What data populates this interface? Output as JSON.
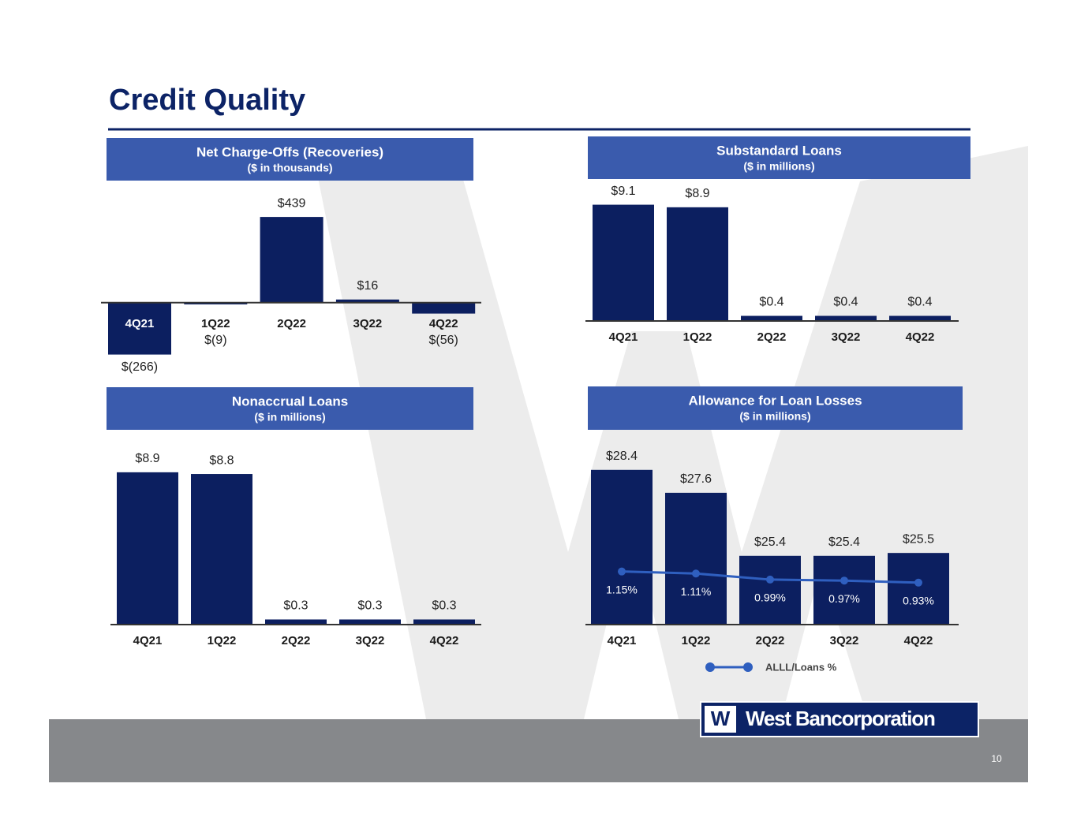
{
  "title": "Credit Quality",
  "page_number": "10",
  "logo_mark": "W",
  "logo": "West Bancorporation",
  "chart_data": [
    {
      "type": "bar",
      "title": "Net Charge-Offs (Recoveries)",
      "subtitle": "($ in thousands)",
      "categories": [
        "4Q21",
        "1Q22",
        "2Q22",
        "3Q22",
        "4Q22"
      ],
      "values": [
        -266,
        -9,
        439,
        16,
        -56
      ],
      "value_labels": [
        "$(266)",
        "$(9)",
        "$439",
        "$16",
        "$(56)"
      ],
      "color": "#0c1f60",
      "ylim": [
        -300,
        500
      ]
    },
    {
      "type": "bar",
      "title": "Substandard Loans",
      "subtitle": "($ in millions)",
      "categories": [
        "4Q21",
        "1Q22",
        "2Q22",
        "3Q22",
        "4Q22"
      ],
      "values": [
        9.1,
        8.9,
        0.4,
        0.4,
        0.4
      ],
      "value_labels": [
        "$9.1",
        "$8.9",
        "$0.4",
        "$0.4",
        "$0.4"
      ],
      "color": "#0c1f60",
      "ylim": [
        0,
        10
      ]
    },
    {
      "type": "bar",
      "title": "Nonaccrual Loans",
      "subtitle": "($ in millions)",
      "categories": [
        "4Q21",
        "1Q22",
        "2Q22",
        "3Q22",
        "4Q22"
      ],
      "values": [
        8.9,
        8.8,
        0.3,
        0.3,
        0.3
      ],
      "value_labels": [
        "$8.9",
        "$8.8",
        "$0.3",
        "$0.3",
        "$0.3"
      ],
      "color": "#0c1f60",
      "ylim": [
        0,
        10
      ]
    },
    {
      "type": "bar",
      "title": "Allowance for Loan Losses",
      "subtitle": "($ in millions)",
      "categories": [
        "4Q21",
        "1Q22",
        "2Q22",
        "3Q22",
        "4Q22"
      ],
      "values": [
        28.4,
        27.6,
        25.4,
        25.4,
        25.5
      ],
      "value_labels": [
        "$28.4",
        "$27.6",
        "$25.4",
        "$25.4",
        "$25.5"
      ],
      "color": "#0c1f60",
      "ylim": [
        23,
        29
      ],
      "y2lim": [
        0.1,
        3.5
      ],
      "series": [
        {
          "name": "ALLL/Loans %",
          "color": "#2f5fbf",
          "axis": "y2",
          "values": [
            1.15,
            1.11,
            0.99,
            0.97,
            0.93
          ],
          "value_labels": [
            "1.15%",
            "1.11%",
            "0.99%",
            "0.97%",
            "0.93%"
          ]
        }
      ]
    }
  ]
}
